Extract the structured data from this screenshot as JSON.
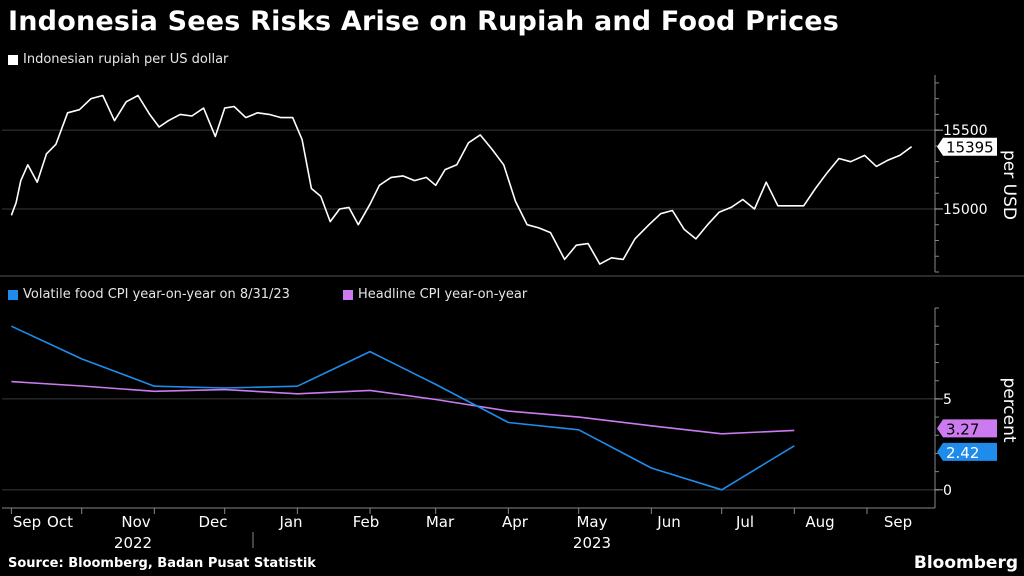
{
  "title": "Indonesia Sees Risks Arise on Rupiah and Food Prices",
  "source": "Source: Bloomberg, Badan Pusat Statistik",
  "brand": "Bloomberg",
  "colors": {
    "rupiah": "#ffffff",
    "food": "#1f8ceb",
    "headline": "#cc7af0",
    "grid": "#3a3a3a"
  },
  "chart_data": [
    {
      "type": "line",
      "legend": "Indonesian rupiah per US dollar",
      "ylabel": "per USD",
      "ylim": [
        14600,
        15850
      ],
      "yticks": [
        15000,
        15500
      ],
      "last_value": "15395",
      "series": [
        {
          "name": "Indonesian rupiah per US dollar",
          "x": [
            "2022-09-01",
            "2022-09-03",
            "2022-09-05",
            "2022-09-08",
            "2022-09-12",
            "2022-09-16",
            "2022-09-20",
            "2022-09-25",
            "2022-09-30",
            "2022-10-05",
            "2022-10-10",
            "2022-10-15",
            "2022-10-20",
            "2022-10-25",
            "2022-10-30",
            "2022-11-03",
            "2022-11-07",
            "2022-11-12",
            "2022-11-17",
            "2022-11-22",
            "2022-11-27",
            "2022-12-01",
            "2022-12-05",
            "2022-12-10",
            "2022-12-15",
            "2022-12-20",
            "2022-12-25",
            "2022-12-30",
            "2023-01-03",
            "2023-01-07",
            "2023-01-11",
            "2023-01-15",
            "2023-01-19",
            "2023-01-23",
            "2023-01-27",
            "2023-02-01",
            "2023-02-05",
            "2023-02-10",
            "2023-02-15",
            "2023-02-20",
            "2023-02-25",
            "2023-03-01",
            "2023-03-05",
            "2023-03-10",
            "2023-03-15",
            "2023-03-20",
            "2023-03-25",
            "2023-03-30",
            "2023-04-04",
            "2023-04-09",
            "2023-04-14",
            "2023-04-19",
            "2023-04-25",
            "2023-04-30",
            "2023-05-05",
            "2023-05-10",
            "2023-05-15",
            "2023-05-20",
            "2023-05-25",
            "2023-05-31",
            "2023-06-05",
            "2023-06-10",
            "2023-06-15",
            "2023-06-20",
            "2023-06-25",
            "2023-06-30",
            "2023-07-05",
            "2023-07-10",
            "2023-07-15",
            "2023-07-20",
            "2023-07-25",
            "2023-07-31",
            "2023-08-05",
            "2023-08-10",
            "2023-08-15",
            "2023-08-20",
            "2023-08-25",
            "2023-08-31",
            "2023-09-05",
            "2023-09-10",
            "2023-09-15",
            "2023-09-20"
          ],
          "y": [
            14960,
            15040,
            15180,
            15280,
            15170,
            15350,
            15410,
            15610,
            15630,
            15700,
            15720,
            15560,
            15680,
            15720,
            15600,
            15520,
            15560,
            15600,
            15590,
            15640,
            15460,
            15640,
            15650,
            15580,
            15610,
            15600,
            15580,
            15580,
            15440,
            15130,
            15080,
            14920,
            15000,
            15010,
            14900,
            15030,
            15150,
            15200,
            15210,
            15180,
            15200,
            15150,
            15250,
            15280,
            15420,
            15470,
            15380,
            15280,
            15050,
            14900,
            14880,
            14850,
            14680,
            14770,
            14780,
            14650,
            14690,
            14680,
            14810,
            14900,
            14970,
            14990,
            14870,
            14810,
            14900,
            14980,
            15010,
            15060,
            15000,
            15170,
            15020,
            15020,
            15020,
            15130,
            15230,
            15320,
            15300,
            15340,
            15270,
            15310,
            15340,
            15395
          ]
        }
      ]
    },
    {
      "type": "line",
      "legend": [
        "Volatile food CPI year-on-year on 8/31/23",
        "Headline CPI year-on-year"
      ],
      "ylabel": "percent",
      "ylim": [
        -1,
        10
      ],
      "yticks": [
        0,
        5
      ],
      "labels": {
        "headline": "3.27",
        "food": "2.42"
      },
      "series": [
        {
          "name": "Volatile food CPI year-on-year on 8/31/23",
          "x": [
            "2022-09-01",
            "2022-10-01",
            "2022-11-01",
            "2022-12-01",
            "2023-01-01",
            "2023-02-01",
            "2023-03-01",
            "2023-04-01",
            "2023-05-01",
            "2023-06-01",
            "2023-07-01",
            "2023-08-01"
          ],
          "y": [
            9.0,
            7.2,
            5.7,
            5.6,
            5.7,
            7.6,
            5.8,
            3.7,
            3.3,
            1.2,
            0.0,
            2.42
          ]
        },
        {
          "name": "Headline CPI year-on-year",
          "x": [
            "2022-09-01",
            "2022-10-01",
            "2022-11-01",
            "2022-12-01",
            "2023-01-01",
            "2023-02-01",
            "2023-03-01",
            "2023-04-01",
            "2023-05-01",
            "2023-06-01",
            "2023-07-01",
            "2023-08-01"
          ],
          "y": [
            5.95,
            5.71,
            5.42,
            5.51,
            5.28,
            5.47,
            4.97,
            4.33,
            4.0,
            3.52,
            3.08,
            3.27
          ]
        }
      ]
    }
  ],
  "x_axis": {
    "months": [
      "Sep",
      "Oct",
      "Nov",
      "Dec",
      "Jan",
      "Feb",
      "Mar",
      "Apr",
      "May",
      "Jun",
      "Jul",
      "Aug",
      "Sep"
    ],
    "years": [
      "2022",
      "2023"
    ]
  }
}
